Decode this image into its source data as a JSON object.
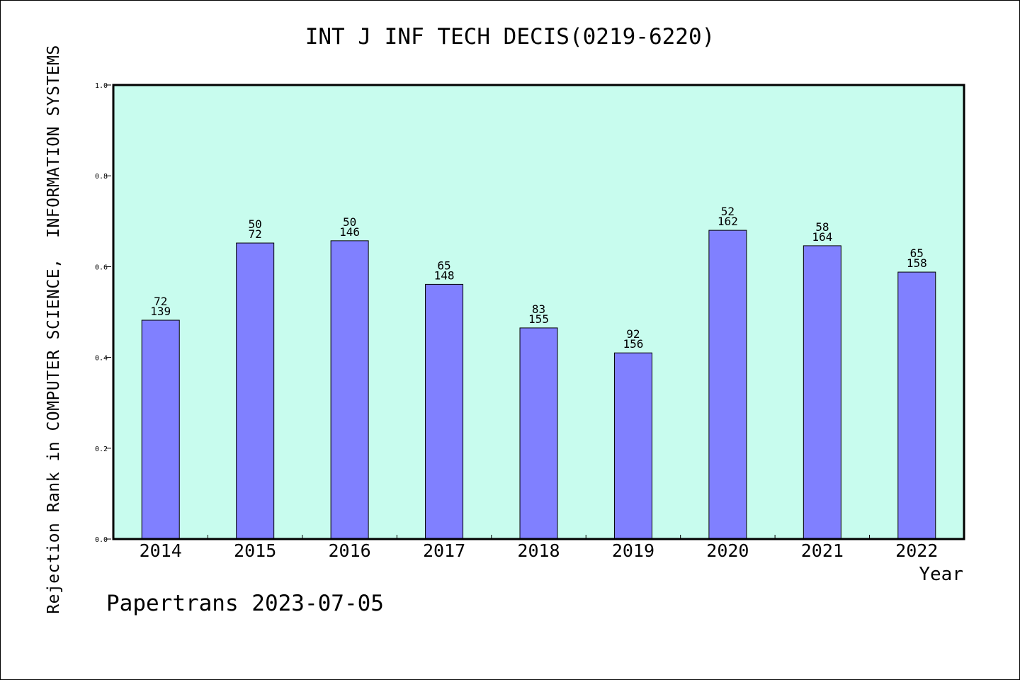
{
  "chart_data": {
    "type": "bar",
    "title": "INT J INF TECH DECIS(0219-6220)",
    "ylabel": "Rejection Rank in COMPUTER SCIENCE,  INFORMATION SYSTEMS",
    "xlabel": "Year",
    "ylim": [
      0.0,
      1.0
    ],
    "yticks": [
      "0.0",
      "0.2",
      "0.4",
      "0.6",
      "0.8",
      "1.0"
    ],
    "categories": [
      "2014",
      "2015",
      "2016",
      "2017",
      "2018",
      "2019",
      "2020",
      "2021",
      "2022"
    ],
    "values": [
      0.482,
      0.652,
      0.657,
      0.561,
      0.465,
      0.41,
      0.68,
      0.646,
      0.588
    ],
    "labels_top": [
      "72",
      "50",
      "50",
      "65",
      "83",
      "92",
      "52",
      "58",
      "65"
    ],
    "labels_bottom": [
      "139",
      "72",
      "146",
      "148",
      "155",
      "156",
      "162",
      "164",
      "158"
    ],
    "grid": false,
    "colors": {
      "plot_background": "#c8fcee",
      "bar_fill": "#8080ff",
      "bar_stroke": "#000000"
    }
  },
  "footer": {
    "text": "Papertrans 2023-07-05"
  }
}
